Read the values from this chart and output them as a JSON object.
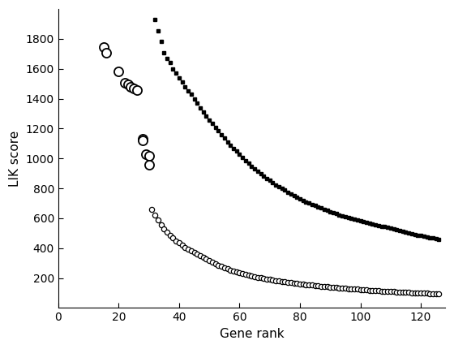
{
  "title": "",
  "xlabel": "Gene rank",
  "ylabel": "LIK score",
  "xlim": [
    0,
    128
  ],
  "ylim": [
    0,
    2000
  ],
  "xticks": [
    0,
    20,
    40,
    60,
    80,
    100,
    120
  ],
  "yticks": [
    200,
    400,
    600,
    800,
    1000,
    1200,
    1400,
    1600,
    1800
  ],
  "dots_x": [
    32,
    33,
    34,
    35,
    36,
    37,
    38,
    39,
    40,
    41,
    42,
    43,
    44,
    45,
    46,
    47,
    48,
    49,
    50,
    51,
    52,
    53,
    54,
    55,
    56,
    57,
    58,
    59,
    60,
    61,
    62,
    63,
    64,
    65,
    66,
    67,
    68,
    69,
    70,
    71,
    72,
    73,
    74,
    75,
    76,
    77,
    78,
    79,
    80,
    81,
    82,
    83,
    84,
    85,
    86,
    87,
    88,
    89,
    90,
    91,
    92,
    93,
    94,
    95,
    96,
    97,
    98,
    99,
    100,
    101,
    102,
    103,
    104,
    105,
    106,
    107,
    108,
    109,
    110,
    111,
    112,
    113,
    114,
    115,
    116,
    117,
    118,
    119,
    120,
    121,
    122,
    123,
    124,
    125,
    126
  ],
  "dots_y": [
    1930,
    1855,
    1785,
    1710,
    1670,
    1640,
    1600,
    1570,
    1540,
    1510,
    1480,
    1450,
    1430,
    1400,
    1370,
    1340,
    1310,
    1285,
    1258,
    1235,
    1210,
    1185,
    1160,
    1135,
    1112,
    1090,
    1068,
    1048,
    1028,
    1008,
    988,
    968,
    950,
    932,
    915,
    898,
    882,
    867,
    853,
    839,
    825,
    812,
    800,
    788,
    776,
    764,
    753,
    742,
    731,
    721,
    711,
    702,
    693,
    684,
    676,
    668,
    660,
    652,
    645,
    638,
    631,
    624,
    618,
    612,
    606,
    600,
    594,
    589,
    583,
    578,
    573,
    568,
    563,
    558,
    553,
    548,
    543,
    538,
    533,
    528,
    523,
    518,
    513,
    508,
    503,
    498,
    493,
    488,
    484,
    480,
    476,
    472,
    468,
    464,
    460
  ],
  "circles_sparse_x": [
    15,
    16,
    20,
    22,
    23,
    24,
    25,
    26,
    28,
    28,
    29,
    30,
    30
  ],
  "circles_sparse_y": [
    1745,
    1710,
    1585,
    1505,
    1495,
    1480,
    1470,
    1455,
    1130,
    1120,
    1030,
    1020,
    960
  ],
  "circles_dense_x": [
    31,
    32,
    33,
    34,
    35,
    36,
    37,
    38,
    39,
    40,
    41,
    42,
    43,
    44,
    45,
    46,
    47,
    48,
    49,
    50,
    51,
    52,
    53,
    54,
    55,
    56,
    57,
    58,
    59,
    60,
    61,
    62,
    63,
    64,
    65,
    66,
    67,
    68,
    69,
    70,
    71,
    72,
    73,
    74,
    75,
    76,
    77,
    78,
    79,
    80,
    81,
    82,
    83,
    84,
    85,
    86,
    87,
    88,
    89,
    90,
    91,
    92,
    93,
    94,
    95,
    96,
    97,
    98,
    99,
    100,
    101,
    102,
    103,
    104,
    105,
    106,
    107,
    108,
    109,
    110,
    111,
    112,
    113,
    114,
    115,
    116,
    117,
    118,
    119,
    120,
    121,
    122,
    123,
    124,
    125,
    126
  ],
  "circles_dense_y": [
    660,
    620,
    587,
    558,
    530,
    507,
    487,
    468,
    450,
    435,
    420,
    407,
    395,
    382,
    370,
    359,
    348,
    337,
    326,
    316,
    306,
    296,
    287,
    278,
    269,
    261,
    254,
    247,
    241,
    235,
    229,
    224,
    219,
    214,
    210,
    206,
    202,
    198,
    194,
    191,
    188,
    184,
    181,
    178,
    175,
    172,
    169,
    167,
    164,
    162,
    159,
    157,
    154,
    152,
    150,
    148,
    146,
    144,
    142,
    140,
    138,
    136,
    135,
    133,
    131,
    130,
    128,
    126,
    125,
    123,
    122,
    120,
    119,
    117,
    116,
    115,
    113,
    112,
    111,
    110,
    109,
    108,
    107,
    106,
    105,
    104,
    103,
    102,
    101,
    100,
    99,
    98,
    97,
    96,
    95,
    94
  ]
}
